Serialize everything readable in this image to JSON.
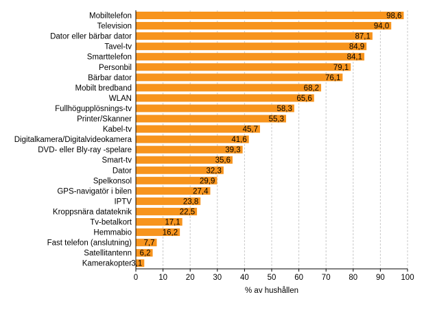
{
  "chart_data": {
    "type": "bar",
    "orientation": "horizontal",
    "categories": [
      "Mobiltelefon",
      "Television",
      "Dator eller bärbar dator",
      "Tavel-tv",
      "Smarttelefon",
      "Personbil",
      "Bärbar dator",
      "Mobilt bredband",
      "WLAN",
      "Fullhögupplösnings-tv",
      "Printer/Skanner",
      "Kabel-tv",
      "Digitalkamera/Digitalvideokamera",
      "DVD- eller Bly-ray -spelare",
      "Smart-tv",
      "Dator",
      "Spelkonsol",
      "GPS-navigatör i bilen",
      "IPTV",
      "Kroppsnära datateknik",
      "Tv-betalkort",
      "Hemmabio",
      "Fast telefon (anslutning)",
      "Satellitantenn",
      "Kamerakopter"
    ],
    "values": [
      98.6,
      94.0,
      87.1,
      84.9,
      84.1,
      79.1,
      76.1,
      68.2,
      65.6,
      58.3,
      55.3,
      45.7,
      41.6,
      39.3,
      35.6,
      32.3,
      29.9,
      27.4,
      23.8,
      22.5,
      17.1,
      16.2,
      7.7,
      6.2,
      3.1
    ],
    "data_labels": [
      "98,6",
      "94,0",
      "87,1",
      "84,9",
      "84,1",
      "79,1",
      "76,1",
      "68,2",
      "65,6",
      "58,3",
      "55,3",
      "45,7",
      "41,6",
      "39,3",
      "35,6",
      "32,3",
      "29,9",
      "27,4",
      "23,8",
      "22,5",
      "17,1",
      "16,2",
      "7,7",
      "6,2",
      "3,1"
    ],
    "xlabel": "% av hushållen",
    "xlim": [
      0,
      100
    ],
    "xticks": [
      "0",
      "10",
      "20",
      "30",
      "40",
      "50",
      "60",
      "70",
      "80",
      "90",
      "100"
    ],
    "grid": "vertical dashed",
    "bar_color": "#f7941d",
    "legend": "none"
  }
}
